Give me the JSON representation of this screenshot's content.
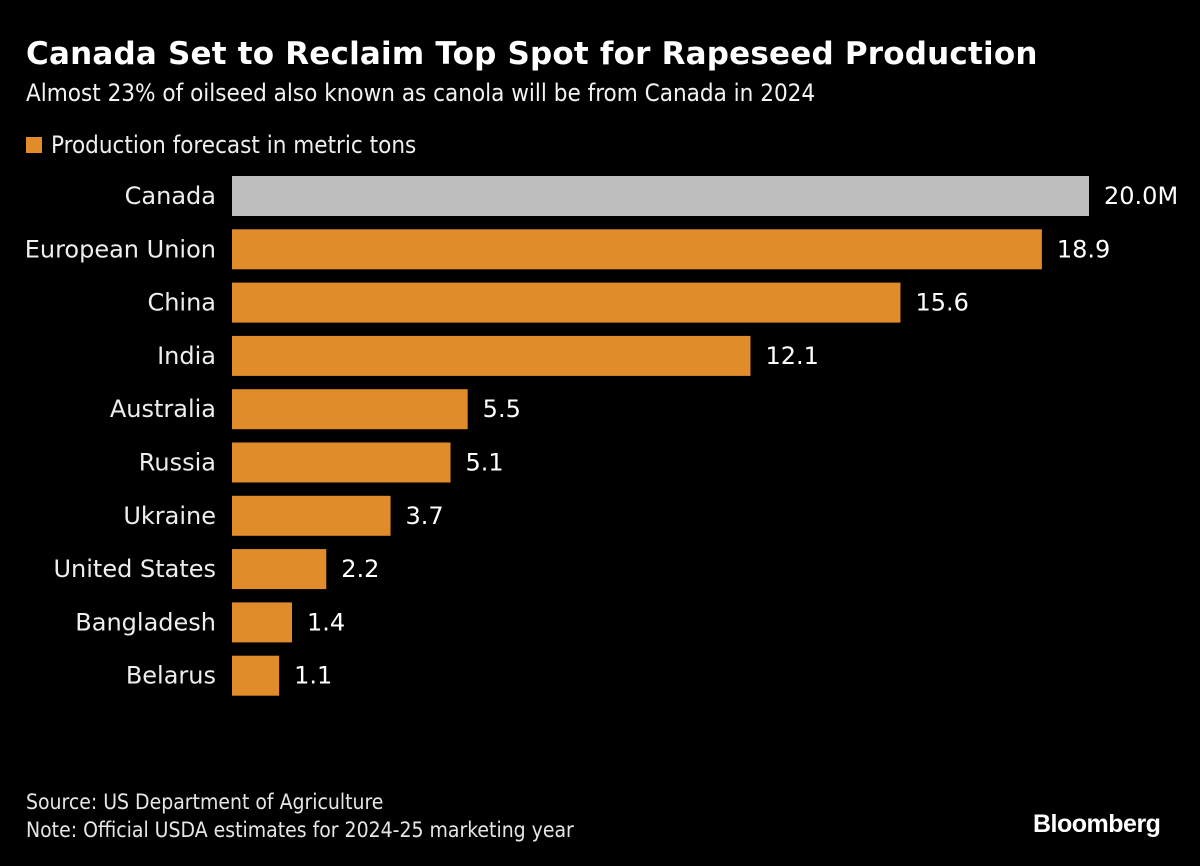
{
  "title": "Canada Set to Reclaim Top Spot for Rapeseed Production",
  "subtitle": "Almost 23% of oilseed also known as canola will be from Canada in 2024",
  "footer": {
    "source": "Source: US Department of Agriculture",
    "note": "Note: Official USDA estimates for 2024-25 marketing year",
    "logo": "Bloomberg"
  },
  "chart_data": {
    "type": "bar",
    "orientation": "horizontal",
    "title": "Canada Set to Reclaim Top Spot for Rapeseed Production",
    "subtitle": "Almost 23% of oilseed also known as canola will be from Canada in 2024",
    "legend": {
      "position": "top-left"
    },
    "grid": false,
    "xlim": [
      0,
      20
    ],
    "series": [
      {
        "name": "Production forecast in metric tons",
        "color": "#E08C2A",
        "highlight_color": "#BEBEBE",
        "highlight_category": "Canada",
        "values": [
          20.0,
          18.9,
          15.6,
          12.1,
          5.5,
          5.1,
          3.7,
          2.2,
          1.4,
          1.1
        ]
      }
    ],
    "categories": [
      "Canada",
      "European Union",
      "China",
      "India",
      "Australia",
      "Russia",
      "Ukraine",
      "United States",
      "Bangladesh",
      "Belarus"
    ],
    "data_labels": [
      "20.0M",
      "18.9",
      "15.6",
      "12.1",
      "5.5",
      "5.1",
      "3.7",
      "2.2",
      "1.4",
      "1.1"
    ]
  }
}
